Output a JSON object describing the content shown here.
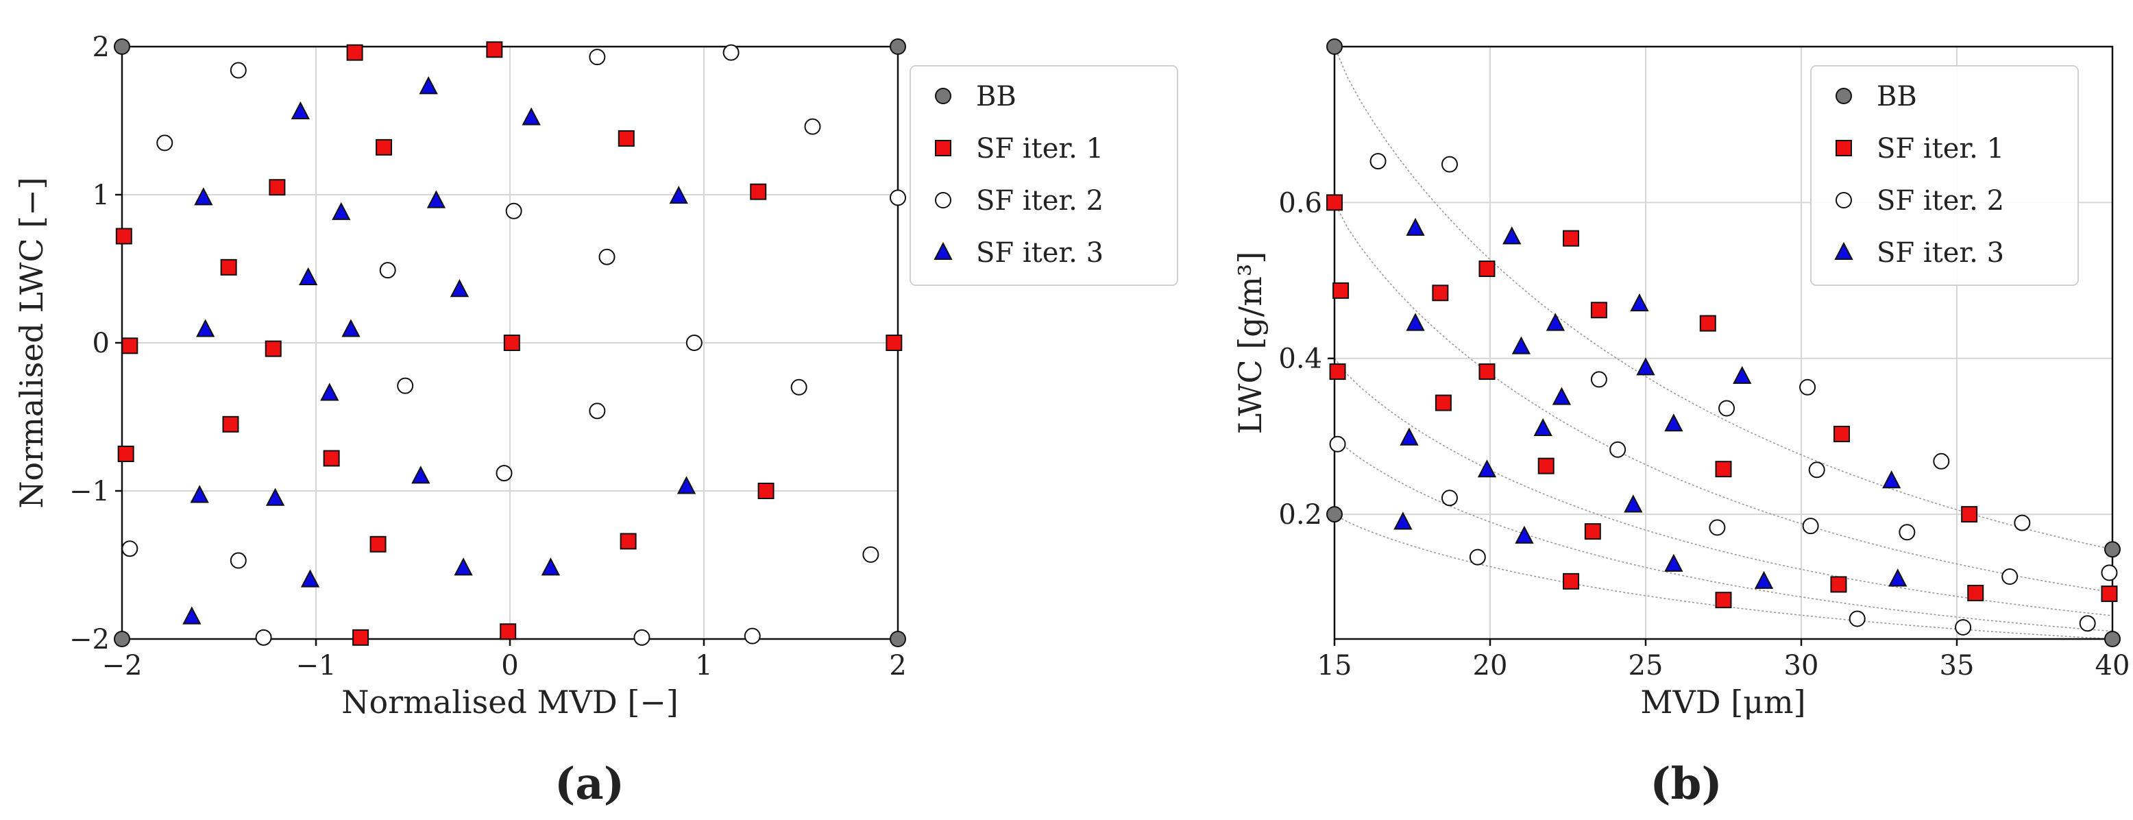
{
  "figure": {
    "colors": {
      "bb": "#777777",
      "sf1": "#ee1111",
      "sf2": "#ffffff",
      "sf3": "#0a0ae0",
      "grid": "#d6d6d6",
      "guide": "#9a9a9a"
    }
  },
  "chart_data": [
    {
      "type": "scatter",
      "panel_label": "(a)",
      "xlabel": "Normalised MVD [−]",
      "ylabel": "Normalised LWC [−]",
      "xlim": [
        -2,
        2
      ],
      "ylim": [
        -2,
        2
      ],
      "xticks": [
        -2,
        -1,
        0,
        1,
        2
      ],
      "xtick_labels": [
        "−2",
        "−1",
        "0",
        "1",
        "2"
      ],
      "yticks": [
        -2,
        -1,
        0,
        1,
        2
      ],
      "ytick_labels": [
        "−2",
        "−1",
        "0",
        "1",
        "2"
      ],
      "grid": true,
      "legend_position": "outside-right",
      "series": [
        {
          "name": "BB",
          "marker": "circle",
          "color": "#777777",
          "points": [
            [
              -2,
              2
            ],
            [
              2,
              2
            ],
            [
              -2,
              -2
            ],
            [
              2,
              -2
            ]
          ]
        },
        {
          "name": "SF iter. 1",
          "marker": "square",
          "color": "#ee1111",
          "points": [
            [
              -0.8,
              1.96
            ],
            [
              -0.08,
              1.98
            ],
            [
              -0.65,
              1.32
            ],
            [
              0.6,
              1.38
            ],
            [
              -1.2,
              1.05
            ],
            [
              1.28,
              1.02
            ],
            [
              -1.99,
              0.72
            ],
            [
              -1.45,
              0.51
            ],
            [
              -1.96,
              -0.02
            ],
            [
              -1.22,
              -0.04
            ],
            [
              0.01,
              0.0
            ],
            [
              1.98,
              0.0
            ],
            [
              -1.98,
              -0.75
            ],
            [
              -1.44,
              -0.55
            ],
            [
              -0.92,
              -0.78
            ],
            [
              1.32,
              -1.0
            ],
            [
              -0.68,
              -1.36
            ],
            [
              0.61,
              -1.34
            ],
            [
              -0.77,
              -1.99
            ],
            [
              -0.01,
              -1.95
            ]
          ]
        },
        {
          "name": "SF iter. 2",
          "marker": "circle",
          "color": "#ffffff",
          "points": [
            [
              -1.4,
              1.84
            ],
            [
              0.45,
              1.93
            ],
            [
              1.14,
              1.96
            ],
            [
              -1.78,
              1.35
            ],
            [
              1.56,
              1.46
            ],
            [
              0.02,
              0.89
            ],
            [
              2.0,
              0.98
            ],
            [
              -0.63,
              0.49
            ],
            [
              0.5,
              0.58
            ],
            [
              -0.54,
              -0.29
            ],
            [
              0.95,
              0.0
            ],
            [
              1.49,
              -0.3
            ],
            [
              0.45,
              -0.46
            ],
            [
              -0.03,
              -0.88
            ],
            [
              -1.96,
              -1.39
            ],
            [
              -1.4,
              -1.47
            ],
            [
              1.86,
              -1.43
            ],
            [
              -1.27,
              -1.99
            ],
            [
              0.68,
              -1.99
            ],
            [
              1.25,
              -1.98
            ]
          ]
        },
        {
          "name": "SF iter. 3",
          "marker": "triangle",
          "color": "#0a0ae0",
          "points": [
            [
              -1.08,
              1.56
            ],
            [
              -0.42,
              1.73
            ],
            [
              0.11,
              1.52
            ],
            [
              -1.58,
              0.98
            ],
            [
              -0.87,
              0.88
            ],
            [
              -0.38,
              0.96
            ],
            [
              0.87,
              0.99
            ],
            [
              -1.04,
              0.44
            ],
            [
              -0.26,
              0.36
            ],
            [
              -1.57,
              0.09
            ],
            [
              -0.82,
              0.09
            ],
            [
              -0.93,
              -0.34
            ],
            [
              -1.6,
              -1.03
            ],
            [
              -1.21,
              -1.05
            ],
            [
              -0.46,
              -0.9
            ],
            [
              0.91,
              -0.97
            ],
            [
              -1.03,
              -1.6
            ],
            [
              -0.24,
              -1.52
            ],
            [
              0.21,
              -1.52
            ],
            [
              -1.64,
              -1.85
            ]
          ]
        }
      ]
    },
    {
      "type": "scatter",
      "panel_label": "(b)",
      "xlabel": "MVD [μm]",
      "ylabel": "LWC [g/m³]",
      "xlim": [
        15,
        40
      ],
      "ylim": [
        0.04,
        0.8
      ],
      "xticks": [
        15,
        20,
        25,
        30,
        35,
        40
      ],
      "xtick_labels": [
        "15",
        "20",
        "25",
        "30",
        "35",
        "40"
      ],
      "yticks": [
        0.2,
        0.4,
        0.6
      ],
      "ytick_labels": [
        "0.2",
        "0.4",
        "0.6"
      ],
      "grid": true,
      "legend_position": "top-right",
      "series": [
        {
          "name": "BB",
          "marker": "circle",
          "color": "#777777",
          "points": [
            [
              15,
              0.8
            ],
            [
              15,
              0.2
            ],
            [
              40,
              0.155
            ],
            [
              40,
              0.04
            ]
          ]
        },
        {
          "name": "SF iter. 1",
          "marker": "square",
          "color": "#ee1111",
          "points": [
            [
              15.0,
              0.6
            ],
            [
              15.2,
              0.487
            ],
            [
              15.1,
              0.383
            ],
            [
              18.4,
              0.484
            ],
            [
              18.5,
              0.343
            ],
            [
              19.9,
              0.515
            ],
            [
              19.9,
              0.383
            ],
            [
              21.8,
              0.262
            ],
            [
              22.6,
              0.554
            ],
            [
              23.3,
              0.178
            ],
            [
              22.6,
              0.114
            ],
            [
              23.5,
              0.462
            ],
            [
              27.0,
              0.445
            ],
            [
              27.5,
              0.258
            ],
            [
              27.5,
              0.09
            ],
            [
              31.3,
              0.303
            ],
            [
              31.2,
              0.11
            ],
            [
              35.4,
              0.2
            ],
            [
              35.6,
              0.099
            ],
            [
              39.9,
              0.098
            ]
          ]
        },
        {
          "name": "SF iter. 2",
          "marker": "circle",
          "color": "#ffffff",
          "points": [
            [
              16.4,
              0.653
            ],
            [
              18.7,
              0.649
            ],
            [
              15.1,
              0.29
            ],
            [
              18.7,
              0.221
            ],
            [
              19.6,
              0.145
            ],
            [
              23.5,
              0.373
            ],
            [
              24.1,
              0.283
            ],
            [
              27.6,
              0.336
            ],
            [
              27.3,
              0.183
            ],
            [
              30.2,
              0.363
            ],
            [
              30.5,
              0.257
            ],
            [
              30.3,
              0.185
            ],
            [
              33.4,
              0.177
            ],
            [
              31.8,
              0.066
            ],
            [
              34.5,
              0.268
            ],
            [
              37.1,
              0.189
            ],
            [
              36.7,
              0.12
            ],
            [
              35.2,
              0.055
            ],
            [
              39.2,
              0.06
            ],
            [
              39.9,
              0.125
            ]
          ]
        },
        {
          "name": "SF iter. 3",
          "marker": "triangle",
          "color": "#0a0ae0",
          "points": [
            [
              17.6,
              0.567
            ],
            [
              20.7,
              0.556
            ],
            [
              17.6,
              0.445
            ],
            [
              21.0,
              0.415
            ],
            [
              22.1,
              0.445
            ],
            [
              24.8,
              0.47
            ],
            [
              25.0,
              0.388
            ],
            [
              22.3,
              0.35
            ],
            [
              21.7,
              0.31
            ],
            [
              17.4,
              0.298
            ],
            [
              19.9,
              0.257
            ],
            [
              25.9,
              0.316
            ],
            [
              28.1,
              0.377
            ],
            [
              17.2,
              0.19
            ],
            [
              21.1,
              0.172
            ],
            [
              24.6,
              0.212
            ],
            [
              25.9,
              0.136
            ],
            [
              28.8,
              0.114
            ],
            [
              32.9,
              0.243
            ],
            [
              33.1,
              0.117
            ]
          ]
        }
      ]
    }
  ]
}
